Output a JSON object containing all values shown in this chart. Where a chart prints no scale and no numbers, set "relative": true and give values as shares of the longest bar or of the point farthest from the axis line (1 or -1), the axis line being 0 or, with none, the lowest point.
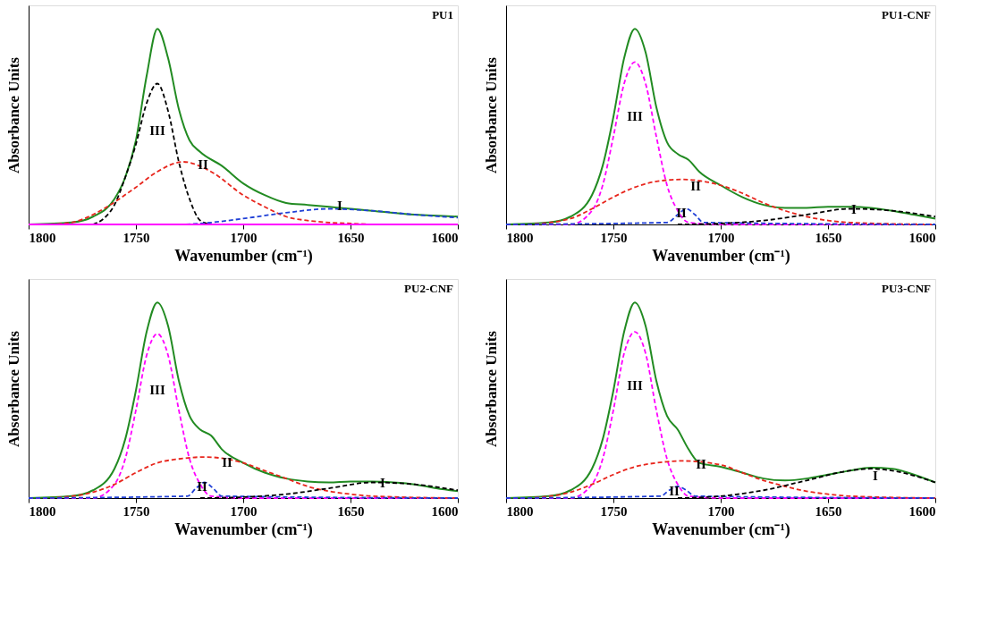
{
  "chart_data": [
    {
      "type": "line",
      "title": "PU1",
      "xlabel": "Wavenumber (cm⁻¹)",
      "ylabel": "Absorbance Units",
      "relative": true,
      "xlim": [
        1800,
        1600
      ],
      "xticks": [
        1800,
        1750,
        1700,
        1650,
        1600
      ],
      "tick_labels": "x",
      "grid": false,
      "series": [
        {
          "color": "#228b22",
          "line_style": "solid",
          "x": [
            1800,
            1780,
            1770,
            1760,
            1755,
            1750,
            1745,
            1740,
            1735,
            1730,
            1725,
            1720,
            1710,
            1700,
            1690,
            1680,
            1670,
            1660,
            1650,
            1640,
            1620,
            1600
          ],
          "values": [
            0,
            0.01,
            0.04,
            0.13,
            0.24,
            0.43,
            0.76,
            1,
            0.85,
            0.59,
            0.43,
            0.37,
            0.3,
            0.21,
            0.15,
            0.11,
            0.1,
            0.09,
            0.08,
            0.07,
            0.05,
            0.04
          ]
        },
        {
          "color": "#000000",
          "line_style": "dashed",
          "x": [
            1770,
            1765,
            1760,
            1755,
            1750,
            1745,
            1740,
            1735,
            1730,
            1725,
            1720,
            1715
          ],
          "values": [
            0,
            0.03,
            0.1,
            0.24,
            0.41,
            0.62,
            0.72,
            0.58,
            0.32,
            0.13,
            0.02,
            0
          ]
        },
        {
          "color": "#e8251c",
          "line_style": "dashed",
          "x": [
            1790,
            1780,
            1770,
            1765,
            1750,
            1740,
            1728,
            1715,
            1700,
            1690,
            1680,
            1670,
            1660,
            1650,
            1640
          ],
          "values": [
            0,
            0.01,
            0.05,
            0.08,
            0.19,
            0.27,
            0.32,
            0.27,
            0.15,
            0.09,
            0.04,
            0.02,
            0.01,
            0.005,
            0
          ]
        },
        {
          "color": "#1f3fd6",
          "line_style": "dashed",
          "x": [
            1800,
            1730,
            1720,
            1700,
            1680,
            1660,
            1640,
            1620,
            1600
          ],
          "values": [
            0,
            0,
            0.005,
            0.03,
            0.06,
            0.08,
            0.07,
            0.05,
            0.035
          ]
        },
        {
          "color": "#ff00ff",
          "line_style": "solid",
          "x": [
            1800,
            1600
          ],
          "values": [
            0,
            0
          ]
        }
      ],
      "annotations": [
        "III",
        "II",
        "I"
      ]
    },
    {
      "type": "line",
      "title": "PU1-CNF",
      "xlabel": "Wavenumber (cm⁻¹)",
      "ylabel": "Absorbance Units",
      "relative": true,
      "xlim": [
        1800,
        1600
      ],
      "xticks": [
        1800,
        1750,
        1700,
        1650,
        1600
      ],
      "tick_labels": "x",
      "grid": false,
      "series": [
        {
          "color": "#228b22",
          "line_style": "solid",
          "x": [
            1800,
            1780,
            1770,
            1760,
            1755,
            1750,
            1745,
            1740,
            1735,
            1730,
            1725,
            1720,
            1715,
            1710,
            1700,
            1690,
            1680,
            1670,
            1660,
            1650,
            1640,
            1630,
            1620,
            1610,
            1600
          ],
          "values": [
            0,
            0.01,
            0.04,
            0.15,
            0.3,
            0.55,
            0.85,
            1,
            0.88,
            0.6,
            0.42,
            0.36,
            0.33,
            0.27,
            0.2,
            0.14,
            0.1,
            0.085,
            0.085,
            0.09,
            0.09,
            0.085,
            0.07,
            0.05,
            0.03
          ]
        },
        {
          "color": "#ff00ff",
          "line_style": "dashed",
          "x": [
            1800,
            1770,
            1760,
            1755,
            1750,
            1745,
            1740,
            1735,
            1730,
            1725,
            1720,
            1715,
            1700,
            1600
          ],
          "values": [
            0,
            0,
            0.07,
            0.2,
            0.45,
            0.72,
            0.83,
            0.72,
            0.45,
            0.2,
            0.07,
            0.01,
            0,
            0
          ]
        },
        {
          "color": "#e8251c",
          "line_style": "dashed",
          "x": [
            1790,
            1770,
            1760,
            1750,
            1740,
            1730,
            1718,
            1700,
            1690,
            1680,
            1670,
            1660,
            1650,
            1640,
            1600
          ],
          "values": [
            0,
            0.03,
            0.08,
            0.14,
            0.19,
            0.22,
            0.23,
            0.2,
            0.16,
            0.11,
            0.07,
            0.04,
            0.02,
            0.01,
            0
          ]
        },
        {
          "color": "#1f3fd6",
          "line_style": "dashed",
          "x": [
            1800,
            1725,
            1720,
            1716,
            1712,
            1708,
            1600
          ],
          "values": [
            0,
            0.01,
            0.05,
            0.08,
            0.05,
            0.01,
            0
          ]
        },
        {
          "color": "#000000",
          "line_style": "dashed",
          "x": [
            1720,
            1700,
            1680,
            1660,
            1640,
            1620,
            1600
          ],
          "values": [
            0,
            0.005,
            0.02,
            0.05,
            0.08,
            0.07,
            0.04
          ]
        }
      ],
      "annotations": [
        "III",
        "II",
        "II",
        "I"
      ]
    },
    {
      "type": "line",
      "title": "PU2-CNF",
      "xlabel": "Wavenumber (cm⁻¹)",
      "ylabel": "Absorbance Units",
      "relative": true,
      "xlim": [
        1800,
        1600
      ],
      "xticks": [
        1800,
        1750,
        1700,
        1650,
        1600
      ],
      "tick_labels": "x",
      "grid": false,
      "series": [
        {
          "color": "#228b22",
          "line_style": "solid",
          "x": [
            1800,
            1780,
            1770,
            1760,
            1755,
            1750,
            1745,
            1740,
            1735,
            1730,
            1725,
            1720,
            1715,
            1710,
            1700,
            1690,
            1680,
            1670,
            1660,
            1650,
            1640,
            1630,
            1620,
            1610,
            1600
          ],
          "values": [
            0,
            0.01,
            0.04,
            0.15,
            0.3,
            0.55,
            0.85,
            1,
            0.88,
            0.6,
            0.42,
            0.35,
            0.32,
            0.25,
            0.18,
            0.13,
            0.1,
            0.085,
            0.08,
            0.085,
            0.085,
            0.08,
            0.07,
            0.05,
            0.035
          ]
        },
        {
          "color": "#ff00ff",
          "line_style": "dashed",
          "x": [
            1800,
            1770,
            1760,
            1755,
            1750,
            1745,
            1740,
            1735,
            1730,
            1725,
            1720,
            1715,
            1700,
            1600
          ],
          "values": [
            0,
            0,
            0.07,
            0.2,
            0.45,
            0.73,
            0.84,
            0.73,
            0.45,
            0.2,
            0.07,
            0.01,
            0,
            0
          ]
        },
        {
          "color": "#e8251c",
          "line_style": "dashed",
          "x": [
            1790,
            1770,
            1760,
            1750,
            1740,
            1730,
            1718,
            1700,
            1690,
            1680,
            1670,
            1660,
            1650,
            1640,
            1600
          ],
          "values": [
            0,
            0.03,
            0.07,
            0.13,
            0.18,
            0.2,
            0.21,
            0.18,
            0.14,
            0.1,
            0.06,
            0.035,
            0.02,
            0.01,
            0
          ]
        },
        {
          "color": "#1f3fd6",
          "line_style": "dashed",
          "x": [
            1800,
            1726,
            1722,
            1718,
            1714,
            1710,
            1600
          ],
          "values": [
            0,
            0.01,
            0.05,
            0.08,
            0.05,
            0.01,
            0
          ]
        },
        {
          "color": "#000000",
          "line_style": "dashed",
          "x": [
            1720,
            1700,
            1680,
            1660,
            1640,
            1620,
            1600
          ],
          "values": [
            0,
            0.005,
            0.02,
            0.05,
            0.08,
            0.07,
            0.04
          ]
        }
      ],
      "annotations": [
        "III",
        "II",
        "II",
        "I"
      ]
    },
    {
      "type": "line",
      "title": "PU3-CNF",
      "xlabel": "Wavenumber (cm⁻¹)",
      "ylabel": "Absorbance Units",
      "relative": true,
      "xlim": [
        1800,
        1600
      ],
      "xticks": [
        1800,
        1750,
        1700,
        1650,
        1600
      ],
      "tick_labels": "x",
      "grid": false,
      "series": [
        {
          "color": "#228b22",
          "line_style": "solid",
          "x": [
            1800,
            1780,
            1770,
            1760,
            1755,
            1750,
            1745,
            1740,
            1735,
            1730,
            1725,
            1720,
            1715,
            1710,
            1700,
            1690,
            1680,
            1670,
            1660,
            1650,
            1640,
            1630,
            1620,
            1610,
            1600
          ],
          "values": [
            0,
            0.01,
            0.04,
            0.15,
            0.3,
            0.55,
            0.85,
            1,
            0.88,
            0.6,
            0.42,
            0.35,
            0.25,
            0.18,
            0.16,
            0.13,
            0.1,
            0.09,
            0.1,
            0.12,
            0.14,
            0.155,
            0.15,
            0.12,
            0.08
          ]
        },
        {
          "color": "#ff00ff",
          "line_style": "dashed",
          "x": [
            1800,
            1770,
            1760,
            1755,
            1750,
            1745,
            1740,
            1735,
            1730,
            1725,
            1720,
            1715,
            1700,
            1600
          ],
          "values": [
            0,
            0,
            0.07,
            0.2,
            0.45,
            0.74,
            0.85,
            0.74,
            0.45,
            0.2,
            0.07,
            0.01,
            0,
            0
          ]
        },
        {
          "color": "#e8251c",
          "line_style": "dashed",
          "x": [
            1790,
            1770,
            1760,
            1750,
            1740,
            1730,
            1718,
            1700,
            1690,
            1680,
            1670,
            1660,
            1650,
            1640,
            1600
          ],
          "values": [
            0,
            0.03,
            0.07,
            0.12,
            0.16,
            0.18,
            0.19,
            0.17,
            0.13,
            0.09,
            0.06,
            0.035,
            0.02,
            0.01,
            0
          ]
        },
        {
          "color": "#1f3fd6",
          "line_style": "dashed",
          "x": [
            1800,
            1728,
            1724,
            1720,
            1716,
            1712,
            1600
          ],
          "values": [
            0,
            0.01,
            0.04,
            0.06,
            0.04,
            0.01,
            0
          ]
        },
        {
          "color": "#000000",
          "line_style": "dashed",
          "x": [
            1720,
            1700,
            1680,
            1660,
            1640,
            1630,
            1620,
            1600
          ],
          "values": [
            0,
            0.01,
            0.04,
            0.09,
            0.14,
            0.15,
            0.14,
            0.08
          ]
        }
      ],
      "annotations": [
        "III",
        "II",
        "II",
        "I"
      ]
    }
  ]
}
